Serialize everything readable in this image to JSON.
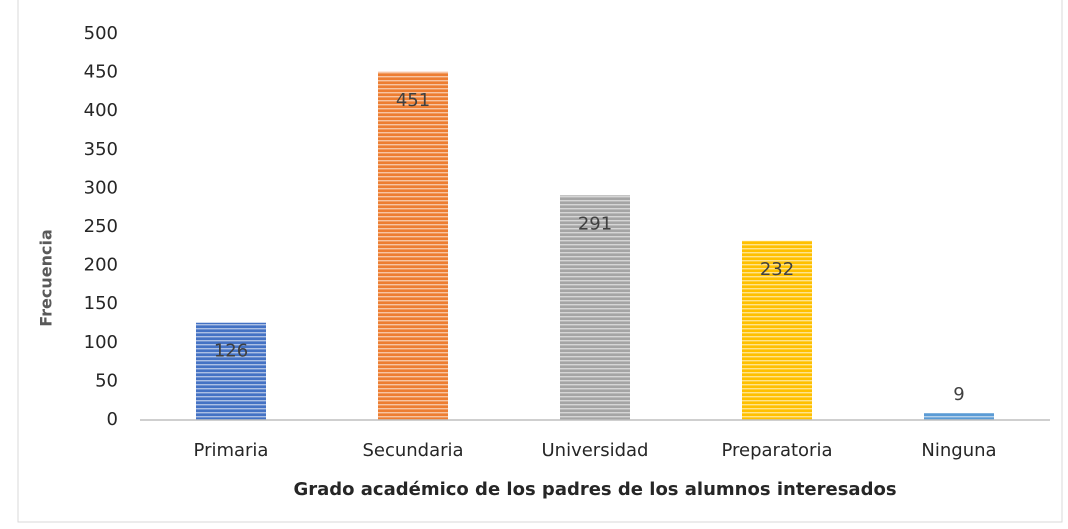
{
  "chart_data": {
    "type": "bar",
    "xlabel": "Grado académico de los padres de los alumnos interesados",
    "ylabel": "Frecuencia",
    "categories": [
      "Primaria",
      "Secundaria",
      "Universidad",
      "Preparatoria",
      "Ninguna"
    ],
    "values": [
      126,
      451,
      291,
      232,
      9
    ],
    "colors": [
      "#4472c4",
      "#ed7d31",
      "#a5a5a5",
      "#ffc000",
      "#5b9bd5"
    ],
    "ylim": [
      0,
      500
    ],
    "yticks": [
      0,
      50,
      100,
      150,
      200,
      250,
      300,
      350,
      400,
      450,
      500
    ],
    "grid": false
  }
}
